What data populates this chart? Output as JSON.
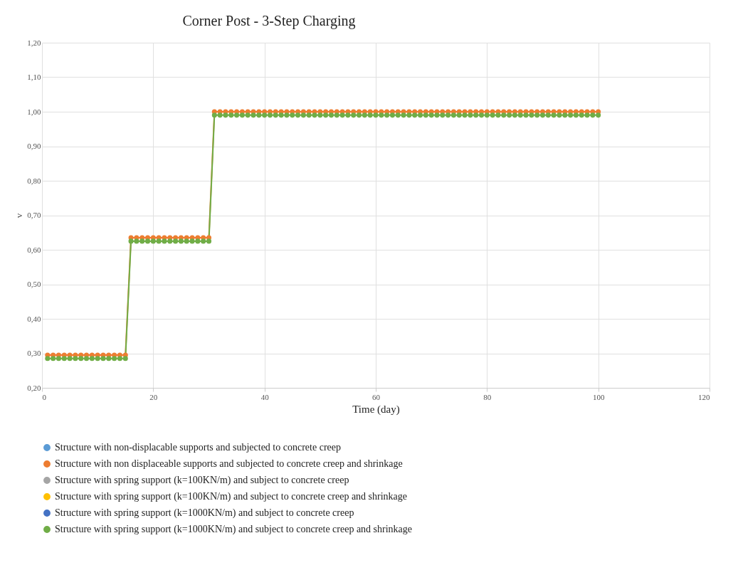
{
  "chart_data": {
    "type": "line",
    "title": "Corner Post - 3-Step Charging",
    "xlabel": "Time (day)",
    "ylabel": "v",
    "x": [
      1,
      2,
      3,
      4,
      5,
      6,
      7,
      8,
      9,
      10,
      11,
      12,
      13,
      14,
      15,
      16,
      17,
      18,
      19,
      20,
      21,
      22,
      23,
      24,
      25,
      26,
      27,
      28,
      29,
      30,
      31,
      32,
      33,
      34,
      35,
      36,
      37,
      38,
      39,
      40,
      41,
      42,
      43,
      44,
      45,
      46,
      47,
      48,
      49,
      50,
      51,
      52,
      53,
      54,
      55,
      56,
      57,
      58,
      59,
      60,
      61,
      62,
      63,
      64,
      65,
      66,
      67,
      68,
      69,
      70,
      71,
      72,
      73,
      74,
      75,
      76,
      77,
      78,
      79,
      80,
      81,
      82,
      83,
      84,
      85,
      86,
      87,
      88,
      89,
      90,
      91,
      92,
      93,
      94,
      95,
      96,
      97,
      98,
      99,
      100
    ],
    "series": [
      {
        "name": "Structure with non-displacable supports and subjected to concrete creep",
        "color": "#5b9bd5",
        "values": [
          null,
          null,
          null,
          null,
          null,
          null,
          null,
          null,
          null,
          null,
          null,
          null,
          null,
          null,
          null,
          null,
          null,
          null,
          null,
          null,
          null,
          null,
          null,
          null,
          null,
          null,
          null,
          null,
          null,
          null,
          null,
          null,
          null,
          null,
          null,
          null,
          null,
          null,
          null,
          null,
          null,
          null,
          null,
          null,
          null,
          null,
          null,
          null,
          null,
          null,
          null,
          null,
          null,
          null,
          null,
          null,
          null,
          null,
          null,
          null,
          null,
          null,
          null,
          null,
          null,
          null,
          null,
          null,
          null,
          null,
          null,
          null,
          null,
          null,
          null,
          null,
          null,
          null,
          null,
          null,
          null,
          null,
          null,
          null,
          null,
          null,
          null,
          null,
          null,
          null,
          null,
          null,
          null,
          null,
          null,
          null,
          null,
          null,
          null,
          null
        ]
      },
      {
        "name": "Structure with non displaceable supports and subjected to concrete creep and shrinkage",
        "color": "#ed7d31",
        "values": [
          0.295,
          0.295,
          0.295,
          0.295,
          0.295,
          0.295,
          0.295,
          0.295,
          0.295,
          0.295,
          0.295,
          0.295,
          0.295,
          0.295,
          0.295,
          0.635,
          0.635,
          0.635,
          0.635,
          0.635,
          0.635,
          0.635,
          0.635,
          0.635,
          0.635,
          0.635,
          0.635,
          0.635,
          0.635,
          0.635,
          1.0,
          1.0,
          1.0,
          1.0,
          1.0,
          1.0,
          1.0,
          1.0,
          1.0,
          1.0,
          1.0,
          1.0,
          1.0,
          1.0,
          1.0,
          1.0,
          1.0,
          1.0,
          1.0,
          1.0,
          1.0,
          1.0,
          1.0,
          1.0,
          1.0,
          1.0,
          1.0,
          1.0,
          1.0,
          1.0,
          1.0,
          1.0,
          1.0,
          1.0,
          1.0,
          1.0,
          1.0,
          1.0,
          1.0,
          1.0,
          1.0,
          1.0,
          1.0,
          1.0,
          1.0,
          1.0,
          1.0,
          1.0,
          1.0,
          1.0,
          1.0,
          1.0,
          1.0,
          1.0,
          1.0,
          1.0,
          1.0,
          1.0,
          1.0,
          1.0,
          1.0,
          1.0,
          1.0,
          1.0,
          1.0,
          1.0,
          1.0,
          1.0,
          1.0,
          1.0
        ]
      },
      {
        "name": "Structure with spring support (k=100KN/m) and subject to concrete creep",
        "color": "#a5a5a5",
        "values": [
          null,
          null,
          null,
          null,
          null,
          null,
          null,
          null,
          null,
          null,
          null,
          null,
          null,
          null,
          null,
          null,
          null,
          null,
          null,
          null,
          null,
          null,
          null,
          null,
          null,
          null,
          null,
          null,
          null,
          null,
          null,
          null,
          null,
          null,
          null,
          null,
          null,
          null,
          null,
          null,
          null,
          null,
          null,
          null,
          null,
          null,
          null,
          null,
          null,
          null,
          null,
          null,
          null,
          null,
          null,
          null,
          null,
          null,
          null,
          null,
          null,
          null,
          null,
          null,
          null,
          null,
          null,
          null,
          null,
          null,
          null,
          null,
          null,
          null,
          null,
          null,
          null,
          null,
          null,
          null,
          null,
          null,
          null,
          null,
          null,
          null,
          null,
          null,
          null,
          null,
          null,
          null,
          null,
          null,
          null,
          null,
          null,
          null,
          null,
          null
        ]
      },
      {
        "name": "Structure with spring support (k=100KN/m) and subject to concrete creep and shrinkage",
        "color": "#ffc000",
        "values": [
          null,
          null,
          null,
          null,
          null,
          null,
          null,
          null,
          null,
          null,
          null,
          null,
          null,
          null,
          null,
          null,
          null,
          null,
          null,
          null,
          null,
          null,
          null,
          null,
          null,
          null,
          null,
          null,
          null,
          null,
          null,
          null,
          null,
          null,
          null,
          null,
          null,
          null,
          null,
          null,
          null,
          null,
          null,
          null,
          null,
          null,
          null,
          null,
          null,
          null,
          null,
          null,
          null,
          null,
          null,
          null,
          null,
          null,
          null,
          null,
          null,
          null,
          null,
          null,
          null,
          null,
          null,
          null,
          null,
          null,
          null,
          null,
          null,
          null,
          null,
          null,
          null,
          null,
          null,
          null,
          null,
          null,
          null,
          null,
          null,
          null,
          null,
          null,
          null,
          null,
          null,
          null,
          null,
          null,
          null,
          null,
          null,
          null,
          null,
          null
        ]
      },
      {
        "name": "Structure with spring support (k=1000KN/m) and subject to concrete creep",
        "color": "#4472c4",
        "values": [
          null,
          null,
          null,
          null,
          null,
          null,
          null,
          null,
          null,
          null,
          null,
          null,
          null,
          null,
          null,
          null,
          null,
          null,
          null,
          null,
          null,
          null,
          null,
          null,
          null,
          null,
          null,
          null,
          null,
          null,
          null,
          null,
          null,
          null,
          null,
          null,
          null,
          null,
          null,
          null,
          null,
          null,
          null,
          null,
          null,
          null,
          null,
          null,
          null,
          null,
          null,
          null,
          null,
          null,
          null,
          null,
          null,
          null,
          null,
          null,
          null,
          null,
          null,
          null,
          null,
          null,
          null,
          null,
          null,
          null,
          null,
          null,
          null,
          null,
          null,
          null,
          null,
          null,
          null,
          null,
          null,
          null,
          null,
          null,
          null,
          null,
          null,
          null,
          null,
          null,
          null,
          null,
          null,
          null,
          null,
          null,
          null,
          null,
          null,
          null
        ]
      },
      {
        "name": "Structure with spring support (k=1000KN/m) and subject to concrete creep and shrinkage",
        "color": "#70ad47",
        "values": [
          0.285,
          0.285,
          0.285,
          0.285,
          0.285,
          0.285,
          0.285,
          0.285,
          0.285,
          0.285,
          0.285,
          0.285,
          0.285,
          0.285,
          0.285,
          0.625,
          0.625,
          0.625,
          0.625,
          0.625,
          0.625,
          0.625,
          0.625,
          0.625,
          0.625,
          0.625,
          0.625,
          0.625,
          0.625,
          0.625,
          0.99,
          0.99,
          0.99,
          0.99,
          0.99,
          0.99,
          0.99,
          0.99,
          0.99,
          0.99,
          0.99,
          0.99,
          0.99,
          0.99,
          0.99,
          0.99,
          0.99,
          0.99,
          0.99,
          0.99,
          0.99,
          0.99,
          0.99,
          0.99,
          0.99,
          0.99,
          0.99,
          0.99,
          0.99,
          0.99,
          0.99,
          0.99,
          0.99,
          0.99,
          0.99,
          0.99,
          0.99,
          0.99,
          0.99,
          0.99,
          0.99,
          0.99,
          0.99,
          0.99,
          0.99,
          0.99,
          0.99,
          0.99,
          0.99,
          0.99,
          0.99,
          0.99,
          0.99,
          0.99,
          0.99,
          0.99,
          0.99,
          0.99,
          0.99,
          0.99,
          0.99,
          0.99,
          0.99,
          0.99,
          0.99,
          0.99,
          0.99,
          0.99,
          0.99,
          0.99
        ]
      }
    ],
    "xlim": [
      0,
      120
    ],
    "xticks": [
      0,
      20,
      40,
      60,
      80,
      100,
      120
    ],
    "ylim": [
      0.2,
      1.2
    ],
    "yticks": [
      {
        "value": 0.2,
        "label": "0,20"
      },
      {
        "value": 0.3,
        "label": "0,30"
      },
      {
        "value": 0.4,
        "label": "0,40"
      },
      {
        "value": 0.5,
        "label": "0,50"
      },
      {
        "value": 0.6,
        "label": "0,60"
      },
      {
        "value": 0.7,
        "label": "0,70"
      },
      {
        "value": 0.8,
        "label": "0,80"
      },
      {
        "value": 0.9,
        "label": "0,90"
      },
      {
        "value": 1.0,
        "label": "1,00"
      },
      {
        "value": 1.1,
        "label": "1,10"
      },
      {
        "value": 1.2,
        "label": "1,20"
      }
    ],
    "grid": true,
    "legend": "bottom",
    "marker": "circle",
    "line_style": "solid"
  }
}
